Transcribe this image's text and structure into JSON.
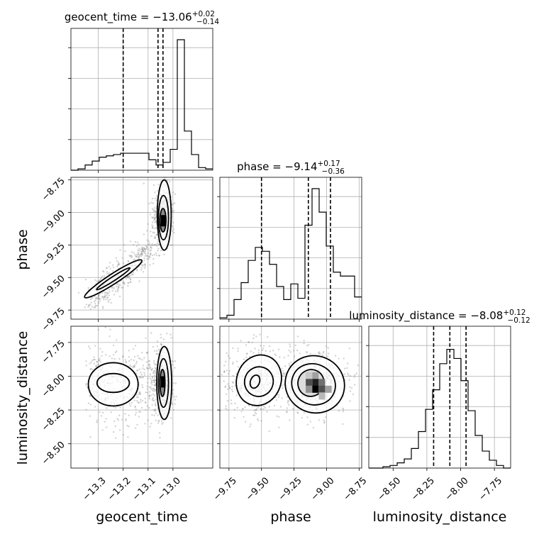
{
  "chart_data": {
    "type": "corner",
    "parameters": [
      "geocent_time",
      "phase",
      "luminosity_distance"
    ],
    "titles": [
      {
        "param": "geocent_time",
        "prefix": "geocent_time = ",
        "median": "−13.06",
        "plus": "+0.02",
        "minus": "−0.14"
      },
      {
        "param": "phase",
        "prefix": "phase = ",
        "median": "−9.14",
        "plus": "+0.17",
        "minus": "−0.36"
      },
      {
        "param": "luminosity_distance",
        "prefix": "luminosity_distance = ",
        "median": "−8.08",
        "plus": "+0.12",
        "minus": "−0.12"
      }
    ],
    "axis_labels": {
      "x": [
        "geocent_time",
        "phase",
        "luminosity_distance"
      ],
      "y": [
        "phase",
        "luminosity_distance"
      ]
    },
    "ranges": {
      "geocent_time": [
        -13.41,
        -12.84
      ],
      "phase": [
        -9.82,
        -8.73
      ],
      "luminosity_distance": [
        -8.68,
        -7.63
      ]
    },
    "ticks": {
      "geocent_time": {
        "values": [
          -13.3,
          -13.2,
          -13.1,
          -13.0
        ],
        "labels": [
          "−13.3",
          "−13.2",
          "−13.1",
          "−13.0"
        ]
      },
      "phase": {
        "values": [
          -9.75,
          -9.5,
          -9.25,
          -9.0,
          -8.75
        ],
        "labels": [
          "−9.75",
          "−9.50",
          "−9.25",
          "−9.00",
          "−8.75"
        ]
      },
      "luminosity_distance": {
        "values": [
          -8.5,
          -8.25,
          -8.0,
          -7.75
        ],
        "labels": [
          "−8.50",
          "−8.25",
          "−8.00",
          "−7.75"
        ]
      }
    },
    "quantiles": {
      "geocent_time": [
        -13.2,
        -13.06,
        -13.04
      ],
      "phase": [
        -9.5,
        -9.14,
        -8.97
      ],
      "luminosity_distance": [
        -8.2,
        -8.08,
        -7.96
      ]
    },
    "histograms": {
      "geocent_time": {
        "counts": [
          0.0,
          0.01,
          0.04,
          0.07,
          0.1,
          0.11,
          0.12,
          0.13,
          0.13,
          0.13,
          0.13,
          0.08,
          0.04,
          0.06,
          0.16,
          1.0,
          0.3,
          0.12,
          0.02,
          0.01
        ]
      },
      "phase": {
        "counts": [
          0.01,
          0.03,
          0.15,
          0.28,
          0.45,
          0.55,
          0.52,
          0.42,
          0.25,
          0.15,
          0.27,
          0.16,
          0.72,
          1.0,
          0.82,
          0.56,
          0.36,
          0.33,
          0.33,
          0.17
        ]
      },
      "luminosity_distance": {
        "counts": [
          0.0,
          0.0,
          0.01,
          0.02,
          0.04,
          0.07,
          0.15,
          0.28,
          0.45,
          0.6,
          0.8,
          0.91,
          0.84,
          0.67,
          0.44,
          0.25,
          0.13,
          0.06,
          0.02,
          0.0
        ]
      }
    },
    "grid": true,
    "colors": {
      "line": "#000000",
      "grid": "#b0b0b0",
      "points": "#808080"
    }
  }
}
